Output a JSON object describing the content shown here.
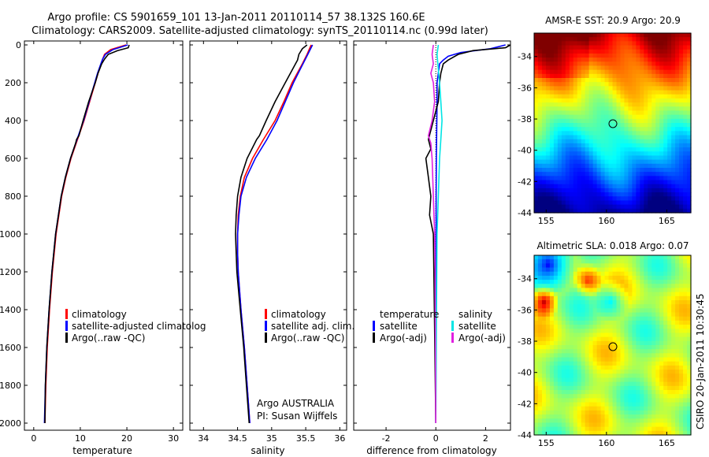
{
  "header": {
    "line1": "Argo profile: CS 5901659_101 13-Jan-2011 20110114_57 38.132S 160.6E",
    "line2": "Climatology: CARS2009. Satellite-adjusted climatology: synTS_20110114.nc (0.99d later)"
  },
  "colors": {
    "climatology": "#ff0000",
    "satellite": "#0000ff",
    "argo": "#000000",
    "sal_satellite": "#00e5e5",
    "sal_argo": "#e020e0",
    "sst_marker": "#000000"
  },
  "depth_axis": {
    "ticks": [
      "0",
      "200",
      "400",
      "600",
      "800",
      "1000",
      "1200",
      "1400",
      "1600",
      "1800",
      "2000"
    ]
  },
  "chart_data": [
    {
      "type": "line",
      "id": "temperature",
      "xlabel": "temperature",
      "xlim": [
        -2,
        32
      ],
      "ylim": [
        2050,
        0
      ],
      "xticks": [
        "0",
        "10",
        "20",
        "30"
      ],
      "legend": [
        "climatology",
        "satellite-adjusted climatolog",
        "Argo(..raw -QC)"
      ],
      "series": [
        {
          "name": "climatology",
          "depth": [
            0,
            25,
            50,
            75,
            100,
            150,
            200,
            300,
            400,
            500,
            600,
            700,
            800,
            1000,
            1200,
            1400,
            1600,
            1800,
            2000
          ],
          "values": [
            19.8,
            16.5,
            15.2,
            14.8,
            14.5,
            13.8,
            13.2,
            12.0,
            10.8,
            9.4,
            8.0,
            6.9,
            6.0,
            4.8,
            4.0,
            3.4,
            2.9,
            2.6,
            2.4
          ]
        },
        {
          "name": "satellite-adjusted climatolog",
          "depth": [
            0,
            25,
            50,
            75,
            100,
            150,
            200,
            300,
            400,
            500,
            600,
            700,
            800,
            1000,
            1200,
            1400,
            1600,
            1800,
            2000
          ],
          "values": [
            20.2,
            17.0,
            15.4,
            14.8,
            14.4,
            13.7,
            13.1,
            11.9,
            10.7,
            9.3,
            7.9,
            6.8,
            5.9,
            4.7,
            3.9,
            3.3,
            2.8,
            2.5,
            2.3
          ]
        },
        {
          "name": "Argo(..raw -QC)",
          "depth": [
            0,
            15,
            30,
            50,
            75,
            100,
            150,
            200,
            300,
            400,
            480,
            500,
            520,
            600,
            700,
            800,
            1000,
            1200,
            1400,
            1600,
            1800,
            2000
          ],
          "values": [
            20.5,
            20.3,
            18.0,
            16.0,
            15.2,
            14.6,
            13.8,
            13.2,
            11.8,
            10.6,
            9.7,
            9.2,
            9.0,
            7.9,
            6.8,
            5.9,
            4.7,
            3.9,
            3.3,
            2.8,
            2.5,
            2.4
          ]
        }
      ]
    },
    {
      "type": "line",
      "id": "salinity",
      "xlabel": "salinity",
      "xlim": [
        33.8,
        36.1
      ],
      "ylim": [
        2050,
        0
      ],
      "xticks": [
        "34",
        "34.5",
        "35",
        "35.5",
        "36"
      ],
      "legend": [
        "climatology",
        "satellite adj. clim.",
        "Argo(..raw -QC)"
      ],
      "annotation": [
        "Argo AUSTRALIA",
        "PI: Susan Wijffels"
      ],
      "series": [
        {
          "name": "climatology",
          "depth": [
            0,
            50,
            100,
            200,
            300,
            400,
            500,
            600,
            700,
            800,
            900,
            1000,
            1100,
            1200,
            1400,
            1600,
            1800,
            2000
          ],
          "values": [
            35.58,
            35.52,
            35.45,
            35.3,
            35.18,
            35.05,
            34.88,
            34.72,
            34.6,
            34.54,
            34.51,
            34.5,
            34.5,
            34.51,
            34.55,
            34.6,
            34.64,
            34.68
          ]
        },
        {
          "name": "satellite adj. clim.",
          "depth": [
            0,
            50,
            100,
            200,
            300,
            400,
            500,
            600,
            700,
            800,
            900,
            1000,
            1100,
            1200,
            1400,
            1600,
            1800,
            2000
          ],
          "values": [
            35.6,
            35.53,
            35.46,
            35.32,
            35.2,
            35.08,
            34.93,
            34.76,
            34.63,
            34.55,
            34.52,
            34.5,
            34.5,
            34.51,
            34.55,
            34.6,
            34.64,
            34.68
          ]
        },
        {
          "name": "Argo(..raw -QC)",
          "depth": [
            0,
            20,
            50,
            80,
            100,
            200,
            300,
            400,
            480,
            500,
            600,
            700,
            800,
            900,
            1000,
            1100,
            1200,
            1400,
            1600,
            1800,
            2000
          ],
          "values": [
            35.52,
            35.45,
            35.4,
            35.38,
            35.35,
            35.2,
            35.05,
            34.92,
            34.82,
            34.78,
            34.64,
            34.55,
            34.5,
            34.48,
            34.47,
            34.48,
            34.49,
            34.54,
            34.59,
            34.63,
            34.67
          ]
        }
      ]
    },
    {
      "type": "line",
      "id": "difference",
      "xlabel": "difference from climatology",
      "xlim": [
        -3.3,
        3.0
      ],
      "ylim": [
        2050,
        0
      ],
      "xticks": [
        "-2",
        "0",
        "2"
      ],
      "legend_temperature": {
        "title": "temperature",
        "items": [
          "satellite",
          "Argo(-adj)"
        ]
      },
      "legend_salinity": {
        "title": "salinity",
        "items": [
          "satellite",
          "Argo(-adj)"
        ]
      },
      "series": [
        {
          "name": "temperature satellite",
          "depth": [
            0,
            20,
            40,
            60,
            80,
            100,
            150,
            200,
            300,
            400,
            500,
            600,
            800,
            1000,
            1500,
            2000
          ],
          "values": [
            2.8,
            2.2,
            1.0,
            0.5,
            0.3,
            0.15,
            0.1,
            0.05,
            0.05,
            0.04,
            0.03,
            0.02,
            0.01,
            0.01,
            0.0,
            0.0
          ]
        },
        {
          "name": "temperature Argo(-adj)",
          "depth": [
            0,
            15,
            30,
            50,
            80,
            100,
            150,
            200,
            300,
            400,
            500,
            550,
            600,
            700,
            800,
            900,
            1000,
            1500,
            2000
          ],
          "values": [
            3.0,
            2.8,
            1.5,
            0.9,
            0.5,
            0.3,
            0.2,
            0.15,
            0.1,
            -0.1,
            -0.3,
            -0.2,
            -0.4,
            -0.3,
            -0.2,
            -0.25,
            -0.1,
            -0.05,
            0.0
          ]
        },
        {
          "name": "salinity satellite",
          "depth": [
            0,
            50,
            100,
            200,
            300,
            400,
            500,
            600,
            800,
            1000,
            1500,
            2000
          ],
          "values": [
            0.1,
            0.05,
            0.08,
            0.15,
            0.2,
            0.25,
            0.2,
            0.15,
            0.1,
            0.05,
            0.02,
            0.0
          ]
        },
        {
          "name": "salinity Argo(-adj)",
          "depth": [
            0,
            50,
            100,
            150,
            200,
            300,
            400,
            480,
            520,
            600,
            800,
            1000,
            1200,
            1500,
            2000
          ],
          "values": [
            -0.1,
            -0.15,
            -0.1,
            -0.2,
            -0.1,
            -0.05,
            -0.15,
            -0.3,
            -0.2,
            -0.15,
            -0.1,
            -0.05,
            -0.03,
            -0.02,
            0.0
          ]
        }
      ]
    },
    {
      "type": "heatmap",
      "id": "sst",
      "title": "AMSR-E SST: 20.9 Argo: 20.9",
      "xlim": [
        154,
        167
      ],
      "ylim": [
        -44,
        -32.5
      ],
      "xticks": [
        "155",
        "160",
        "165"
      ],
      "yticks": [
        "-34",
        "-36",
        "-38",
        "-40",
        "-42",
        "-44"
      ],
      "marker": {
        "lon": 160.6,
        "lat": -38.13
      }
    },
    {
      "type": "heatmap",
      "id": "sla",
      "title": "Altimetric SLA: 0.018 Argo: 0.07",
      "xlim": [
        154,
        167
      ],
      "ylim": [
        -44,
        -32.5
      ],
      "xticks": [
        "155",
        "160",
        "165"
      ],
      "yticks": [
        "-34",
        "-36",
        "-38",
        "-40",
        "-42",
        "-44"
      ],
      "marker": {
        "lon": 160.6,
        "lat": -38.13
      }
    }
  ],
  "footer": {
    "stamp": "CSIRO 20-Jan-2011 10:30:45"
  }
}
